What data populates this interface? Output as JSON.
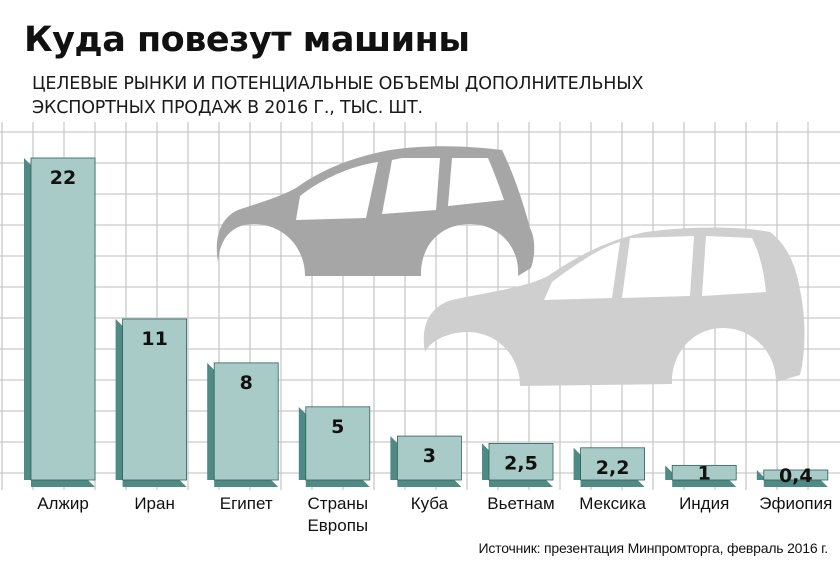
{
  "header": {
    "title": "Куда повезут машины",
    "subtitle": "Целевые рынки и потенциальные объемы дополнительных экспортных продаж в 2016 г., тыс. шт."
  },
  "source": "Источник: презентация Минпромторга, февраль 2016 г.",
  "colors": {
    "bar_front": "#a9cbc8",
    "bar_side": "#4f8a84",
    "bar_edge": "#2f5f5a",
    "grid": "#c9c9c9",
    "car_dark": "#a6a6a6",
    "car_light": "#cfcfcf"
  },
  "chart_data": {
    "type": "bar",
    "categories": [
      "Алжир",
      "Иран",
      "Египет",
      "Страны Европы",
      "Куба",
      "Вьетнам",
      "Мексика",
      "Индия",
      "Эфиопия"
    ],
    "category_lines": [
      [
        "Алжир"
      ],
      [
        "Иран"
      ],
      [
        "Египет"
      ],
      [
        "Страны",
        "Европы"
      ],
      [
        "Куба"
      ],
      [
        "Вьетнам"
      ],
      [
        "Мексика"
      ],
      [
        "Индия"
      ],
      [
        "Эфиопия"
      ]
    ],
    "values": [
      22,
      11,
      8,
      5,
      3,
      2.5,
      2.2,
      1,
      0.4
    ],
    "value_labels": [
      "22",
      "11",
      "8",
      "5",
      "3",
      "2,5",
      "2,2",
      "1",
      "0,4"
    ],
    "title": "Куда повезут машины",
    "xlabel": "",
    "ylabel": "",
    "ylim": [
      0,
      22
    ],
    "grid": true,
    "legend": "none",
    "decoration": "two-car-silhouettes"
  }
}
